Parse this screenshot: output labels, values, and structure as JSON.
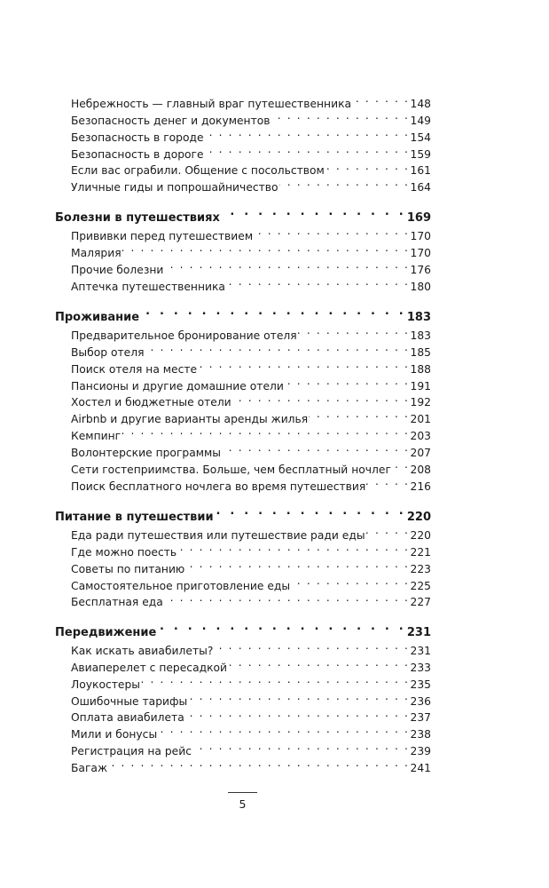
{
  "sections": [
    {
      "heading": null,
      "items": [
        {
          "title": "Небрежность — главный враг путешественника",
          "page": "148"
        },
        {
          "title": "Безопасность денег и документов",
          "page": "149"
        },
        {
          "title": "Безопасность в городе",
          "page": "154"
        },
        {
          "title": "Безопасность в дороге",
          "page": "159"
        },
        {
          "title": "Если вас ограбили. Общение с посольством",
          "page": "161"
        },
        {
          "title": "Уличные гиды и попрошайничество",
          "page": "164"
        }
      ]
    },
    {
      "heading": {
        "title": "Болезни в путешествиях",
        "page": "169"
      },
      "items": [
        {
          "title": "Прививки перед путешествием",
          "page": "170"
        },
        {
          "title": "Малярия",
          "page": "170"
        },
        {
          "title": "Прочие болезни",
          "page": "176"
        },
        {
          "title": "Аптечка путешественника",
          "page": "180"
        }
      ]
    },
    {
      "heading": {
        "title": "Проживание",
        "page": "183"
      },
      "items": [
        {
          "title": "Предварительное бронирование отеля",
          "page": "183"
        },
        {
          "title": "Выбор отеля",
          "page": "185"
        },
        {
          "title": "Поиск отеля на месте",
          "page": "188"
        },
        {
          "title": "Пансионы и другие домашние отели",
          "page": "191"
        },
        {
          "title": "Хостел и бюджетные отели",
          "page": "192"
        },
        {
          "title": "Airbnb и другие варианты аренды жилья",
          "page": "201"
        },
        {
          "title": "Кемпинг",
          "page": "203"
        },
        {
          "title": "Волонтерские программы",
          "page": "207"
        },
        {
          "title": "Сети гостеприимства. Больше, чем бесплатный ночлег",
          "page": "208"
        },
        {
          "title": "Поиск бесплатного ночлега во время путешествия",
          "page": "216"
        }
      ]
    },
    {
      "heading": {
        "title": "Питание в путешествии",
        "page": "220"
      },
      "items": [
        {
          "title": "Еда ради путешествия или путешествие ради еды",
          "page": "220"
        },
        {
          "title": "Где можно поесть",
          "page": "221"
        },
        {
          "title": "Советы по питанию",
          "page": "223"
        },
        {
          "title": "Самостоятельное приготовление еды",
          "page": "225"
        },
        {
          "title": "Бесплатная еда",
          "page": "227"
        }
      ]
    },
    {
      "heading": {
        "title": "Передвижение",
        "page": "231"
      },
      "items": [
        {
          "title": "Как искать авиабилеты?",
          "page": "231"
        },
        {
          "title": "Авиаперелет с пересадкой",
          "page": "233"
        },
        {
          "title": "Лоукостеры",
          "page": "235"
        },
        {
          "title": "Ошибочные тарифы",
          "page": "236"
        },
        {
          "title": "Оплата авиабилета",
          "page": "237"
        },
        {
          "title": "Мили и бонусы",
          "page": "238"
        },
        {
          "title": "Регистрация на рейс",
          "page": "239"
        },
        {
          "title": "Багаж",
          "page": "241"
        }
      ]
    }
  ],
  "page_number": "5"
}
